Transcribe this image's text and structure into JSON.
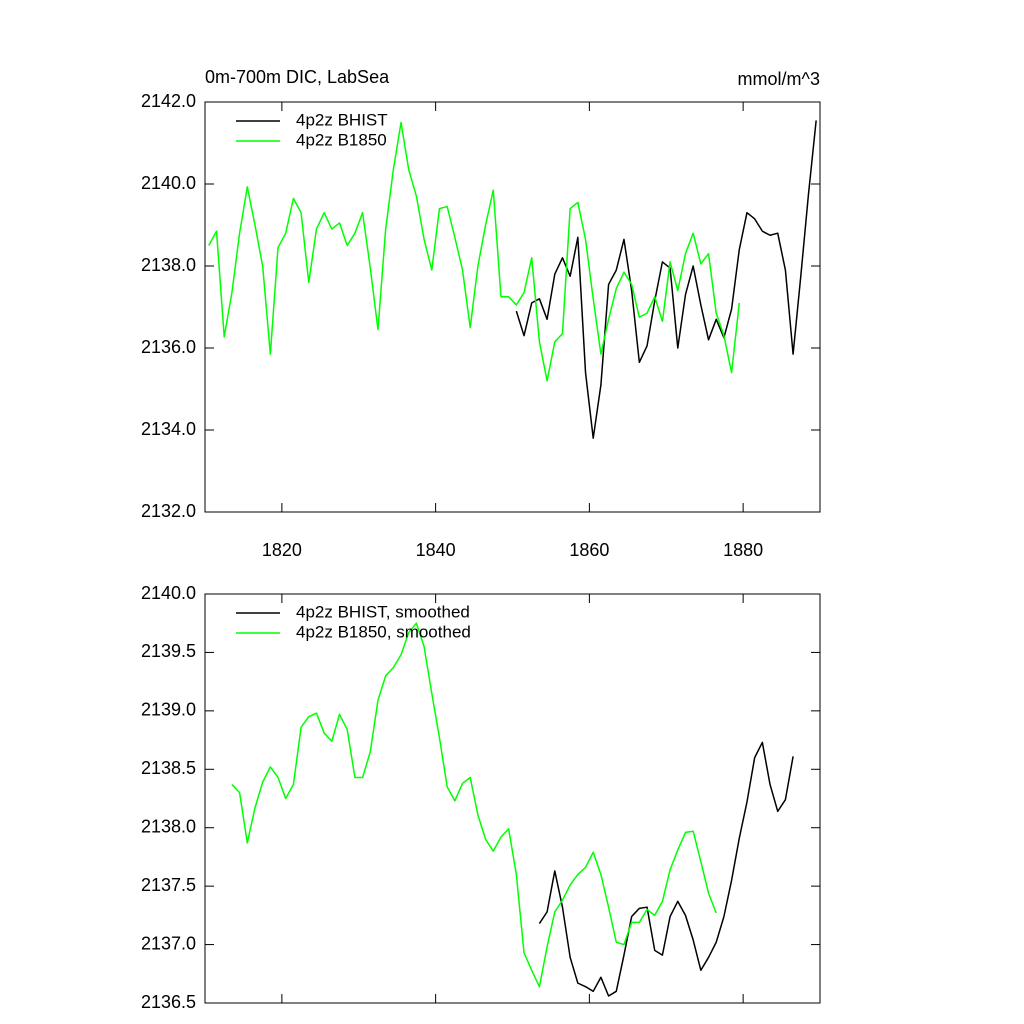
{
  "chart_data": [
    {
      "type": "line",
      "title": "0m-700m DIC, LabSea",
      "subtitle": "mmol/m^3",
      "x": [
        1810.5,
        1811.5,
        1812.5,
        1813.5,
        1814.5,
        1815.5,
        1816.5,
        1817.5,
        1818.5,
        1819.5,
        1820.5,
        1821.5,
        1822.5,
        1823.5,
        1824.5,
        1825.5,
        1826.5,
        1827.5,
        1828.5,
        1829.5,
        1830.5,
        1831.5,
        1832.5,
        1833.5,
        1834.5,
        1835.5,
        1836.5,
        1837.5,
        1838.5,
        1839.5,
        1840.5,
        1841.5,
        1842.5,
        1843.5,
        1844.5,
        1845.5,
        1846.5,
        1847.5,
        1848.5,
        1849.5,
        1850.5,
        1851.5,
        1852.5,
        1853.5,
        1854.5,
        1855.5,
        1856.5,
        1857.5,
        1858.5,
        1859.5,
        1860.5,
        1861.5,
        1862.5,
        1863.5,
        1864.5,
        1865.5,
        1866.5,
        1867.5,
        1868.5,
        1869.5,
        1870.5,
        1871.5,
        1872.5,
        1873.5,
        1874.5,
        1875.5,
        1876.5,
        1877.5,
        1878.5,
        1879.5,
        1880.5,
        1881.5,
        1882.5,
        1883.5,
        1884.5,
        1885.5,
        1886.5,
        1887.5,
        1888.5,
        1889.5
      ],
      "series": [
        {
          "name": "4p2z BHIST",
          "color": "#000000",
          "values": [
            null,
            null,
            null,
            null,
            null,
            null,
            null,
            null,
            null,
            null,
            null,
            null,
            null,
            null,
            null,
            null,
            null,
            null,
            null,
            null,
            null,
            null,
            null,
            null,
            null,
            null,
            null,
            null,
            null,
            null,
            null,
            null,
            null,
            null,
            null,
            null,
            null,
            null,
            null,
            null,
            2136.9,
            2136.3,
            2137.1,
            2137.2,
            2136.7,
            2137.8,
            2138.2,
            2137.75,
            2138.7,
            2135.4,
            2133.8,
            2135.1,
            2137.55,
            2137.9,
            2138.65,
            2137.4,
            2135.65,
            2136.05,
            2137.15,
            2138.1,
            2137.95,
            2136.0,
            2137.3,
            2138.0,
            2137.05,
            2136.2,
            2136.7,
            2136.25,
            2136.95,
            2138.4,
            2139.3,
            2139.15,
            2138.85,
            2138.75,
            2138.8,
            2137.9,
            2135.85,
            2137.75,
            2139.75,
            2141.55
          ]
        },
        {
          "name": "4p2z B1850",
          "color": "#00ff00",
          "values": [
            2138.5,
            2138.85,
            2136.27,
            2137.35,
            2138.8,
            2139.93,
            2139.0,
            2138.0,
            2135.85,
            2138.45,
            2138.8,
            2139.65,
            2139.3,
            2137.6,
            2138.9,
            2139.3,
            2138.9,
            2139.05,
            2138.5,
            2138.8,
            2139.3,
            2137.95,
            2136.45,
            2138.9,
            2140.35,
            2141.5,
            2140.35,
            2139.7,
            2138.65,
            2137.9,
            2139.4,
            2139.45,
            2138.7,
            2137.9,
            2136.5,
            2138.0,
            2139.0,
            2139.85,
            2137.25,
            2137.25,
            2137.05,
            2137.35,
            2138.2,
            2136.15,
            2135.2,
            2136.15,
            2136.35,
            2139.4,
            2139.55,
            2138.65,
            2137.2,
            2135.85,
            2136.7,
            2137.45,
            2137.85,
            2137.55,
            2136.75,
            2136.85,
            2137.25,
            2136.65,
            2138.1,
            2137.4,
            2138.3,
            2138.8,
            2138.05,
            2138.3,
            2136.85,
            2136.3,
            2135.4,
            2137.1,
            null,
            null,
            null,
            null,
            null,
            null,
            null,
            null,
            null,
            null
          ]
        }
      ],
      "xlim": [
        1810,
        1890
      ],
      "xticks": [
        1820,
        1840,
        1860,
        1880
      ],
      "ylim": [
        2132,
        2142
      ],
      "yticks": [
        {
          "value": 2132,
          "label": "2132.0"
        },
        {
          "value": 2134,
          "label": "2134.0"
        },
        {
          "value": 2136,
          "label": "2136.0"
        },
        {
          "value": 2138,
          "label": "2138.0"
        },
        {
          "value": 2140,
          "label": "2140.0"
        },
        {
          "value": 2142,
          "label": "2142.0"
        }
      ],
      "legend": "upper left"
    },
    {
      "type": "line",
      "x": [
        1813.5,
        1814.5,
        1815.5,
        1816.5,
        1817.5,
        1818.5,
        1819.5,
        1820.5,
        1821.5,
        1822.5,
        1823.5,
        1824.5,
        1825.5,
        1826.5,
        1827.5,
        1828.5,
        1829.5,
        1830.5,
        1831.5,
        1832.5,
        1833.5,
        1834.5,
        1835.5,
        1836.5,
        1837.5,
        1838.5,
        1839.5,
        1840.5,
        1841.5,
        1842.5,
        1843.5,
        1844.5,
        1845.5,
        1846.5,
        1847.5,
        1848.5,
        1849.5,
        1850.5,
        1851.5,
        1852.5,
        1853.5,
        1854.5,
        1855.5,
        1856.5,
        1857.5,
        1858.5,
        1859.5,
        1860.5,
        1861.5,
        1862.5,
        1863.5,
        1864.5,
        1865.5,
        1866.5,
        1867.5,
        1868.5,
        1869.5,
        1870.5,
        1871.5,
        1872.5,
        1873.5,
        1874.5,
        1875.5,
        1876.5,
        1877.5,
        1878.5,
        1879.5,
        1880.5,
        1881.5,
        1882.5,
        1883.5,
        1884.5,
        1885.5,
        1886.5
      ],
      "series": [
        {
          "name": "4p2z BHIST, smoothed",
          "color": "#000000",
          "values": [
            null,
            null,
            null,
            null,
            null,
            null,
            null,
            null,
            null,
            null,
            null,
            null,
            null,
            null,
            null,
            null,
            null,
            null,
            null,
            null,
            null,
            null,
            null,
            null,
            null,
            null,
            null,
            null,
            null,
            null,
            null,
            null,
            null,
            null,
            null,
            null,
            null,
            null,
            null,
            null,
            2137.18,
            2137.28,
            2137.63,
            2137.32,
            2136.89,
            2136.67,
            2136.64,
            2136.6,
            2136.72,
            2136.56,
            2136.6,
            2136.91,
            2137.24,
            2137.31,
            2137.32,
            2136.95,
            2136.91,
            2137.24,
            2137.37,
            2137.25,
            2137.04,
            2136.78,
            2136.89,
            2137.02,
            2137.24,
            2137.55,
            2137.91,
            2138.22,
            2138.6,
            2138.73,
            2138.37,
            2138.14,
            2138.24,
            2138.61
          ]
        },
        {
          "name": "4p2z B1850, smoothed",
          "color": "#00ff00",
          "values": [
            2138.37,
            2138.3,
            2137.87,
            2138.17,
            2138.39,
            2138.52,
            2138.43,
            2138.25,
            2138.37,
            2138.86,
            2138.95,
            2138.98,
            2138.81,
            2138.74,
            2138.97,
            2138.84,
            2138.43,
            2138.43,
            2138.65,
            2139.09,
            2139.3,
            2139.37,
            2139.48,
            2139.67,
            2139.75,
            2139.55,
            2139.15,
            2138.77,
            2138.35,
            2138.23,
            2138.38,
            2138.43,
            2138.11,
            2137.9,
            2137.8,
            2137.92,
            2137.99,
            2137.6,
            2136.93,
            2136.78,
            2136.64,
            2136.98,
            2137.28,
            2137.38,
            2137.51,
            2137.6,
            2137.66,
            2137.79,
            2137.6,
            2137.32,
            2137.02,
            2137.0,
            2137.19,
            2137.19,
            2137.3,
            2137.25,
            2137.37,
            2137.64,
            2137.81,
            2137.96,
            2137.97,
            2137.71,
            2137.44,
            2137.27,
            null,
            null,
            null,
            null,
            null,
            null,
            null,
            null,
            null,
            null
          ]
        }
      ],
      "xlim": [
        1810,
        1890
      ],
      "xticks": [
        1820,
        1840,
        1860,
        1880
      ],
      "ylim": [
        2136.5,
        2140
      ],
      "yticks": [
        2136.5,
        {
          "value": 2137,
          "label": "2137.0"
        },
        2137.5,
        {
          "value": 2138,
          "label": "2138.0"
        },
        2138.5,
        {
          "value": 2139,
          "label": "2139.0"
        },
        2139.5,
        {
          "value": 2140,
          "label": "2140.0"
        }
      ],
      "legend": "upper left"
    }
  ]
}
